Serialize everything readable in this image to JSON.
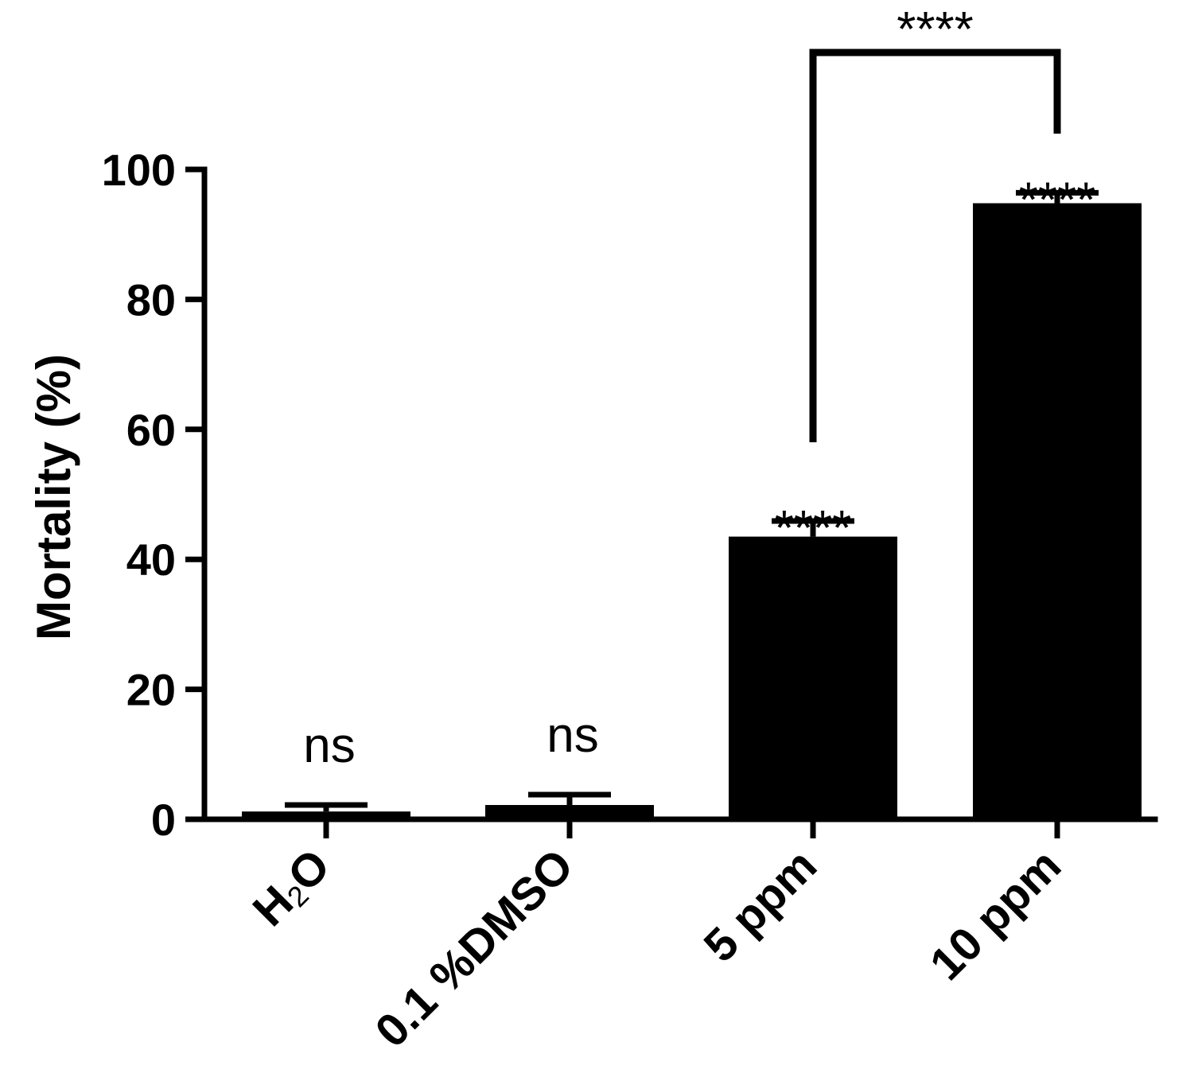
{
  "chart_data": {
    "type": "bar",
    "categories": [
      "H2O",
      "0.1 %DMSO",
      "5 ppm",
      "10 ppm"
    ],
    "category_display": [
      {
        "main": "H",
        "sub": "2",
        "tail": "O"
      },
      {
        "main": "0.1 %DMSO",
        "sub": "",
        "tail": ""
      },
      {
        "main": "5 ppm",
        "sub": "",
        "tail": ""
      },
      {
        "main": "10 ppm",
        "sub": "",
        "tail": ""
      }
    ],
    "values": [
      1.2,
      2.2,
      43.5,
      94.8
    ],
    "errors": [
      1.0,
      1.6,
      2.4,
      1.6
    ],
    "annotations": [
      "ns",
      "ns",
      "****",
      "****"
    ],
    "comparison": {
      "from": 2,
      "to": 3,
      "label": "****"
    },
    "title": "",
    "xlabel": "",
    "ylabel": "Mortality (%)",
    "ylim": [
      0,
      100
    ],
    "yticks": [
      0,
      20,
      40,
      60,
      80,
      100
    ],
    "grid": false,
    "bar_color": "#000000"
  }
}
